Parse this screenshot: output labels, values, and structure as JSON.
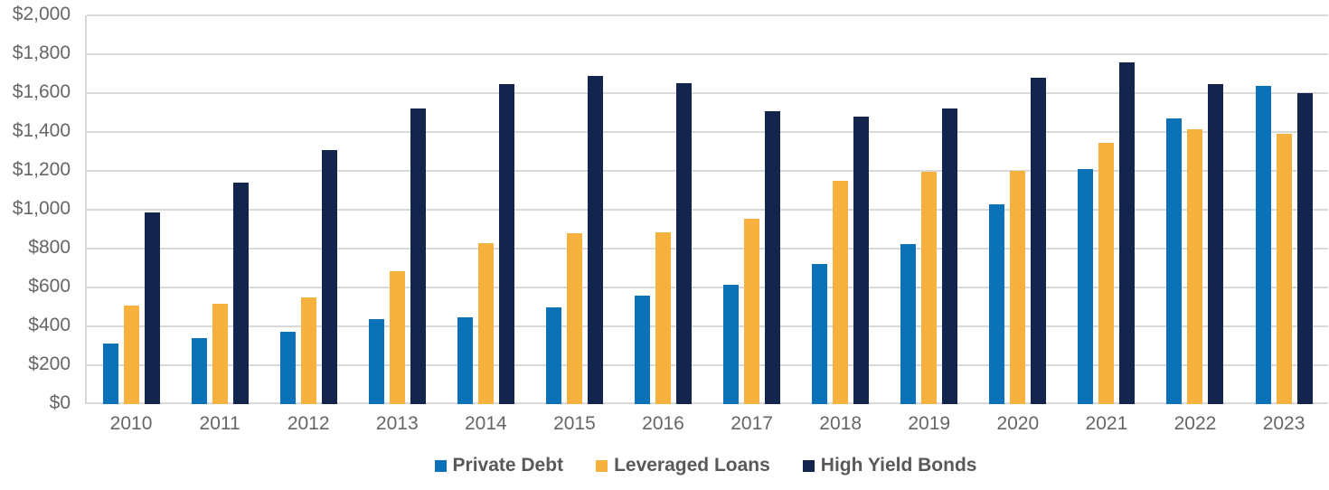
{
  "chart_data": {
    "type": "bar",
    "title": "",
    "categories": [
      "2010",
      "2011",
      "2012",
      "2013",
      "2014",
      "2015",
      "2016",
      "2017",
      "2018",
      "2019",
      "2020",
      "2021",
      "2022",
      "2023"
    ],
    "series": [
      {
        "name": "Private Debt",
        "color": "#0B72B8",
        "values": [
          310,
          340,
          370,
          435,
          445,
          500,
          560,
          615,
          720,
          825,
          1030,
          1210,
          1470,
          1635
        ]
      },
      {
        "name": "Leveraged Loans",
        "color": "#F7B13E",
        "values": [
          505,
          515,
          550,
          685,
          830,
          880,
          885,
          955,
          1150,
          1195,
          1200,
          1345,
          1415,
          1390
        ]
      },
      {
        "name": "High Yield Bonds",
        "color": "#13254C",
        "values": [
          985,
          1140,
          1305,
          1520,
          1645,
          1690,
          1650,
          1505,
          1480,
          1520,
          1680,
          1760,
          1645,
          1600
        ]
      }
    ],
    "y_axis": {
      "min": 0,
      "max": 2000,
      "step": 200,
      "tick_labels": [
        "$0",
        "$200",
        "$400",
        "$600",
        "$800",
        "$1,000",
        "$1,200",
        "$1,400",
        "$1,600",
        "$1,800",
        "$2,000"
      ]
    },
    "x_axis": {
      "tick_labels": [
        "2010",
        "2011",
        "2012",
        "2013",
        "2014",
        "2015",
        "2016",
        "2017",
        "2018",
        "2019",
        "2020",
        "2021",
        "2022",
        "2023"
      ]
    },
    "legend": {
      "position": "bottom",
      "entries": [
        "Private Debt",
        "Leveraged Loans",
        "High Yield Bonds"
      ]
    },
    "grid": "horizontal",
    "palette": {
      "gridline": "#D9D9D9",
      "axis_text": "#666666",
      "legend_text": "#595959",
      "background": "#FFFFFF"
    }
  }
}
